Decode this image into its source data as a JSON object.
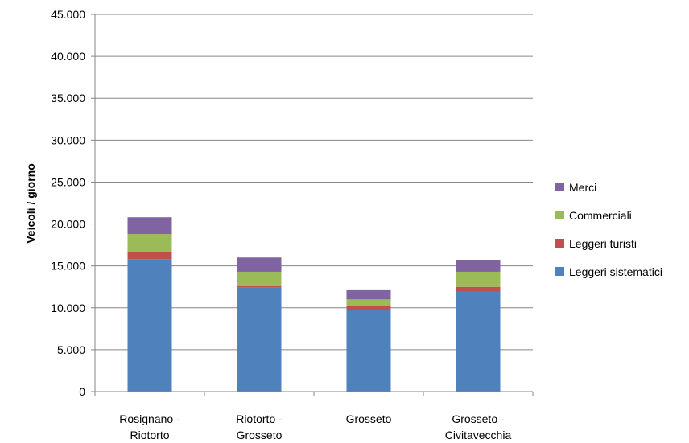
{
  "chart_data": {
    "type": "bar",
    "stacked": true,
    "title": "",
    "xlabel": "",
    "ylabel": "Veicoli / giorno",
    "ylim": [
      0,
      45000
    ],
    "ytick_step": 5000,
    "yticks": [
      "0",
      "5.000",
      "10.000",
      "15.000",
      "20.000",
      "25.000",
      "30.000",
      "35.000",
      "40.000",
      "45.000"
    ],
    "grid": true,
    "legend_position": "right",
    "categories": [
      [
        "Rosignano -",
        "Riotorto"
      ],
      [
        "Riotorto -",
        "Grosseto"
      ],
      [
        "Grosseto"
      ],
      [
        "Grosseto -",
        "Civitavecchia"
      ]
    ],
    "series": [
      {
        "name": "Leggeri sistematici",
        "color": "#4F81BD",
        "values": [
          15800,
          12400,
          9700,
          11900
        ]
      },
      {
        "name": "Leggeri turisti",
        "color": "#C0504D",
        "values": [
          800,
          200,
          500,
          600
        ]
      },
      {
        "name": "Commerciali",
        "color": "#9BBB59",
        "values": [
          2200,
          1700,
          800,
          1800
        ]
      },
      {
        "name": "Merci",
        "color": "#8064A2",
        "values": [
          2000,
          1700,
          1100,
          1400
        ]
      }
    ]
  }
}
